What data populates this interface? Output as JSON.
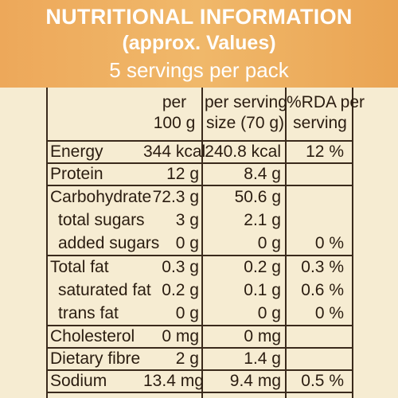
{
  "header": {
    "title": "NUTRITIONAL INFORMATION",
    "subtitle": "(approx. Values)",
    "servings": "5 servings per pack"
  },
  "columns": {
    "per100_line1": "per",
    "per100_line2": "100 g",
    "serving_line1": "per serving",
    "serving_line2": "size (70 g)",
    "rda_line1": "%RDA per",
    "rda_line2": "serving"
  },
  "rows": [
    {
      "label": "Energy",
      "per100": "344 kcal",
      "serving": "240.8 kcal",
      "rda": "12 %"
    },
    {
      "label": "Protein",
      "per100": "12 g",
      "serving": "8.4 g",
      "rda": ""
    },
    {
      "label": "Carbohydrate",
      "per100": "72.3 g",
      "serving": "50.6 g",
      "rda": ""
    },
    {
      "label": "total sugars",
      "per100": "3 g",
      "serving": "2.1 g",
      "rda": ""
    },
    {
      "label": "added sugars",
      "per100": "0 g",
      "serving": "0 g",
      "rda": "0 %"
    },
    {
      "label": "Total fat",
      "per100": "0.3 g",
      "serving": "0.2 g",
      "rda": "0.3 %"
    },
    {
      "label": "saturated fat",
      "per100": "0.2 g",
      "serving": "0.1 g",
      "rda": "0.6 %"
    },
    {
      "label": "trans fat",
      "per100": "0 g",
      "serving": "0 g",
      "rda": "0 %"
    },
    {
      "label": "Cholesterol",
      "per100": "0 mg",
      "serving": "0 mg",
      "rda": ""
    },
    {
      "label": "Dietary fibre",
      "per100": "2 g",
      "serving": "1.4 g",
      "rda": ""
    },
    {
      "label": "Sodium",
      "per100": "13.4 mg",
      "serving": "9.4 mg",
      "rda": "0.5 %"
    }
  ],
  "colors": {
    "header_bg": "#eda85a",
    "panel_bg": "#f6ecd2",
    "line": "#3a2a1c",
    "text": "#2a1c10"
  }
}
